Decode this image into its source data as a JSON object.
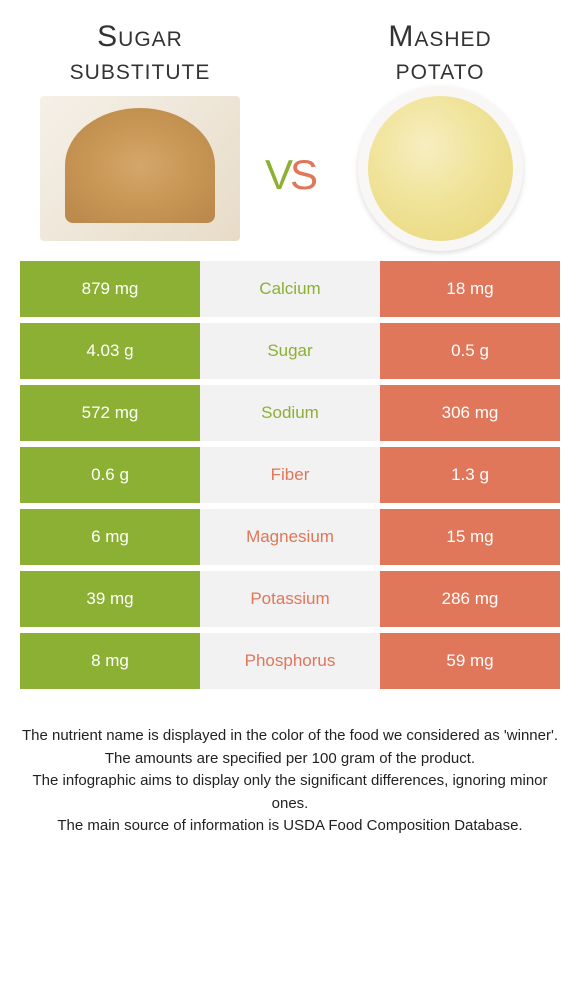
{
  "header": {
    "left_title": "Sugar substitute",
    "right_title": "Mashed potato",
    "vs": "vs"
  },
  "colors": {
    "left": "#8bb033",
    "right": "#e0765a",
    "mid_bg": "#f2f2f2",
    "text_white": "#ffffff"
  },
  "rows": [
    {
      "label": "Calcium",
      "left": "879 mg",
      "right": "18 mg",
      "winner": "left"
    },
    {
      "label": "Sugar",
      "left": "4.03 g",
      "right": "0.5 g",
      "winner": "left"
    },
    {
      "label": "Sodium",
      "left": "572 mg",
      "right": "306 mg",
      "winner": "left"
    },
    {
      "label": "Fiber",
      "left": "0.6 g",
      "right": "1.3 g",
      "winner": "right"
    },
    {
      "label": "Magnesium",
      "left": "6 mg",
      "right": "15 mg",
      "winner": "right"
    },
    {
      "label": "Potassium",
      "left": "39 mg",
      "right": "286 mg",
      "winner": "right"
    },
    {
      "label": "Phosphorus",
      "left": "8 mg",
      "right": "59 mg",
      "winner": "right"
    }
  ],
  "footer": {
    "line1": "The nutrient name is displayed in the color of the food we considered as 'winner'.",
    "line2": "The amounts are specified per 100 gram of the product.",
    "line3": "The infographic aims to display only the significant differences, ignoring minor ones.",
    "line4": "The main source of information is USDA Food Composition Database."
  }
}
